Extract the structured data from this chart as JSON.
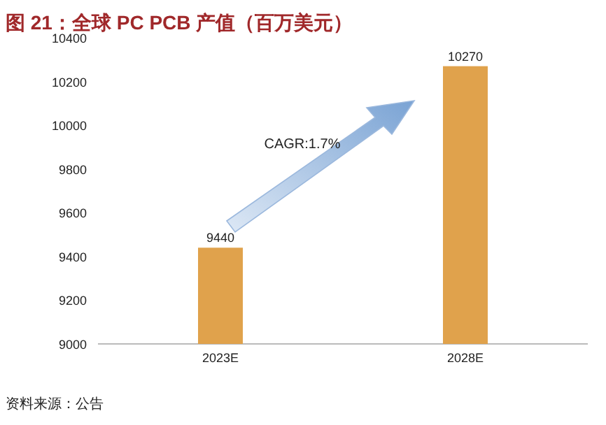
{
  "chart_data": {
    "type": "bar",
    "title": "图 21：全球 PC PCB 产值（百万美元）",
    "categories": [
      "2023E",
      "2028E"
    ],
    "values": [
      9440,
      10270
    ],
    "color": "#e0a24c",
    "ylim": [
      9000,
      10400
    ],
    "yticks": [
      9000,
      9200,
      9400,
      9600,
      9800,
      10000,
      10200,
      10400
    ],
    "data_labels": true,
    "grid": false,
    "annotations": [
      {
        "text": "CAGR:1.7%"
      },
      "资料来源：公告"
    ]
  }
}
